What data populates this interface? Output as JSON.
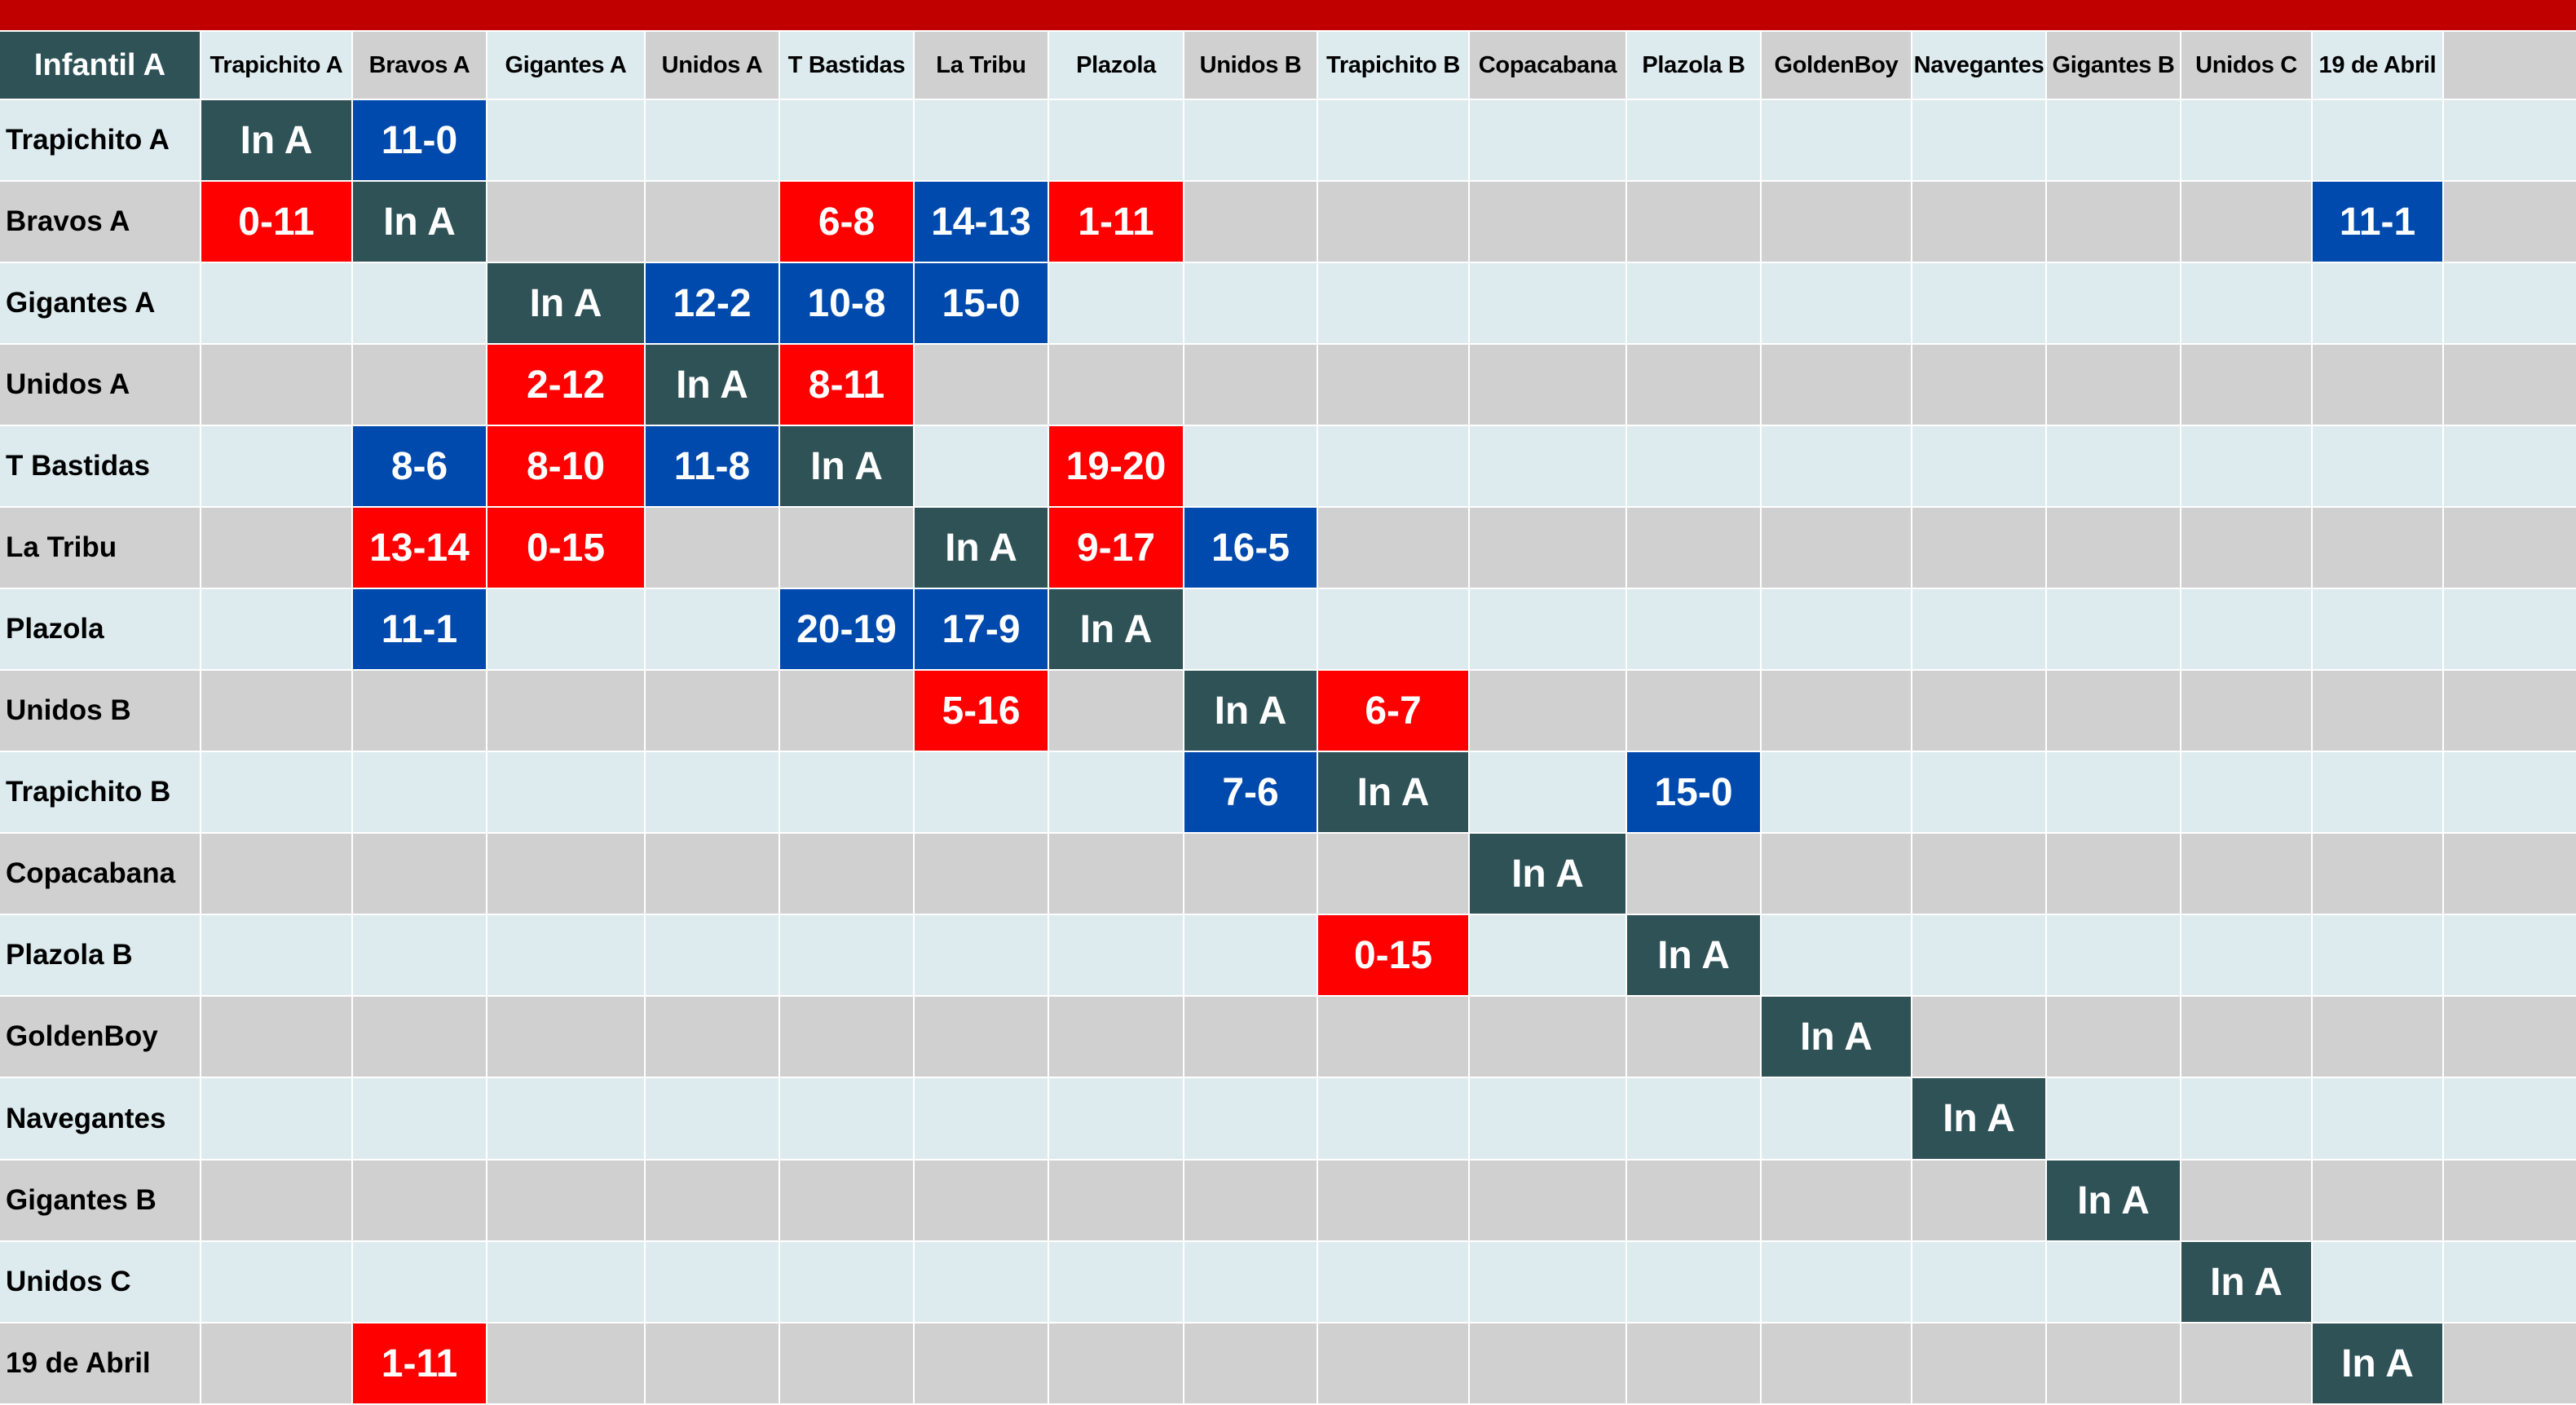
{
  "title_bar": {
    "color": "#C00000"
  },
  "colors": {
    "self_cell": "#2F5257",
    "win": "#004AAD",
    "loss": "#FF0000",
    "light_fill": "#DDEBEF",
    "gray_fill": "#D0D0D0"
  },
  "table": {
    "corner_label": "Infantil A",
    "columns": [
      {
        "label": "Trapichito A",
        "fill": "light"
      },
      {
        "label": "Bravos A",
        "fill": "gray"
      },
      {
        "label": "Gigantes A",
        "fill": "light"
      },
      {
        "label": "Unidos A",
        "fill": "gray"
      },
      {
        "label": "T Bastidas",
        "fill": "light"
      },
      {
        "label": "La Tribu",
        "fill": "gray"
      },
      {
        "label": "Plazola",
        "fill": "light"
      },
      {
        "label": "Unidos B",
        "fill": "gray"
      },
      {
        "label": "Trapichito B",
        "fill": "light"
      },
      {
        "label": "Copacabana",
        "fill": "gray"
      },
      {
        "label": "Plazola B",
        "fill": "light"
      },
      {
        "label": "GoldenBoy",
        "fill": "gray"
      },
      {
        "label": "Navegantes",
        "fill": "light"
      },
      {
        "label": "Gigantes B",
        "fill": "gray"
      },
      {
        "label": "Unidos C",
        "fill": "gray"
      },
      {
        "label": "19 de Abril",
        "fill": "light"
      },
      {
        "label": "",
        "fill": "gray"
      }
    ],
    "rows": [
      {
        "label": "Trapichito A",
        "cells": [
          [
            "In A",
            "self"
          ],
          [
            "11-0",
            "win"
          ],
          null,
          null,
          null,
          null,
          null,
          null,
          null,
          null,
          null,
          null,
          null,
          null,
          null,
          null,
          null
        ]
      },
      {
        "label": "Bravos A",
        "cells": [
          [
            "0-11",
            "loss"
          ],
          [
            "In A",
            "self"
          ],
          null,
          null,
          [
            "6-8",
            "loss"
          ],
          [
            "14-13",
            "win"
          ],
          [
            "1-11",
            "loss"
          ],
          null,
          null,
          null,
          null,
          null,
          null,
          null,
          null,
          [
            "11-1",
            "win"
          ],
          null
        ]
      },
      {
        "label": "Gigantes A",
        "cells": [
          null,
          null,
          [
            "In A",
            "self"
          ],
          [
            "12-2",
            "win"
          ],
          [
            "10-8",
            "win"
          ],
          [
            "15-0",
            "win"
          ],
          null,
          null,
          null,
          null,
          null,
          null,
          null,
          null,
          null,
          null,
          null
        ]
      },
      {
        "label": "Unidos A",
        "cells": [
          null,
          null,
          [
            "2-12",
            "loss"
          ],
          [
            "In A",
            "self"
          ],
          [
            "8-11",
            "loss"
          ],
          null,
          null,
          null,
          null,
          null,
          null,
          null,
          null,
          null,
          null,
          null,
          null
        ]
      },
      {
        "label": "T Bastidas",
        "cells": [
          null,
          [
            "8-6",
            "win"
          ],
          [
            "8-10",
            "loss"
          ],
          [
            "11-8",
            "win"
          ],
          [
            "In A",
            "self"
          ],
          null,
          [
            "19-20",
            "loss"
          ],
          null,
          null,
          null,
          null,
          null,
          null,
          null,
          null,
          null,
          null
        ]
      },
      {
        "label": "La Tribu",
        "cells": [
          null,
          [
            "13-14",
            "loss"
          ],
          [
            "0-15",
            "loss"
          ],
          null,
          null,
          [
            "In A",
            "self"
          ],
          [
            "9-17",
            "loss"
          ],
          [
            "16-5",
            "win"
          ],
          null,
          null,
          null,
          null,
          null,
          null,
          null,
          null,
          null
        ]
      },
      {
        "label": "Plazola",
        "cells": [
          null,
          [
            "11-1",
            "win"
          ],
          null,
          null,
          [
            "20-19",
            "win"
          ],
          [
            "17-9",
            "win"
          ],
          [
            "In A",
            "self"
          ],
          null,
          null,
          null,
          null,
          null,
          null,
          null,
          null,
          null,
          null
        ]
      },
      {
        "label": "Unidos B",
        "cells": [
          null,
          null,
          null,
          null,
          null,
          [
            "5-16",
            "loss"
          ],
          null,
          [
            "In A",
            "self"
          ],
          [
            "6-7",
            "loss"
          ],
          null,
          null,
          null,
          null,
          null,
          null,
          null,
          null
        ]
      },
      {
        "label": "Trapichito B",
        "cells": [
          null,
          null,
          null,
          null,
          null,
          null,
          null,
          [
            "7-6",
            "win"
          ],
          [
            "In A",
            "self"
          ],
          null,
          [
            "15-0",
            "win"
          ],
          null,
          null,
          null,
          null,
          null,
          null
        ]
      },
      {
        "label": "Copacabana",
        "cells": [
          null,
          null,
          null,
          null,
          null,
          null,
          null,
          null,
          null,
          [
            "In A",
            "self"
          ],
          null,
          null,
          null,
          null,
          null,
          null,
          null
        ]
      },
      {
        "label": "Plazola B",
        "cells": [
          null,
          null,
          null,
          null,
          null,
          null,
          null,
          null,
          [
            "0-15",
            "loss"
          ],
          null,
          [
            "In A",
            "self"
          ],
          null,
          null,
          null,
          null,
          null,
          null
        ]
      },
      {
        "label": "GoldenBoy",
        "cells": [
          null,
          null,
          null,
          null,
          null,
          null,
          null,
          null,
          null,
          null,
          null,
          [
            "In A",
            "self"
          ],
          null,
          null,
          null,
          null,
          null
        ]
      },
      {
        "label": "Navegantes",
        "cells": [
          null,
          null,
          null,
          null,
          null,
          null,
          null,
          null,
          null,
          null,
          null,
          null,
          [
            "In A",
            "self"
          ],
          null,
          null,
          null,
          null
        ]
      },
      {
        "label": "Gigantes B",
        "cells": [
          null,
          null,
          null,
          null,
          null,
          null,
          null,
          null,
          null,
          null,
          null,
          null,
          null,
          [
            "In A",
            "self"
          ],
          null,
          null,
          null
        ]
      },
      {
        "label": "Unidos C",
        "cells": [
          null,
          null,
          null,
          null,
          null,
          null,
          null,
          null,
          null,
          null,
          null,
          null,
          null,
          null,
          [
            "In A",
            "self"
          ],
          null,
          null
        ]
      },
      {
        "label": "19 de Abril",
        "cells": [
          null,
          [
            "1-11",
            "loss"
          ],
          null,
          null,
          null,
          null,
          null,
          null,
          null,
          null,
          null,
          null,
          null,
          null,
          null,
          [
            "In A",
            "self"
          ],
          null
        ]
      }
    ]
  }
}
